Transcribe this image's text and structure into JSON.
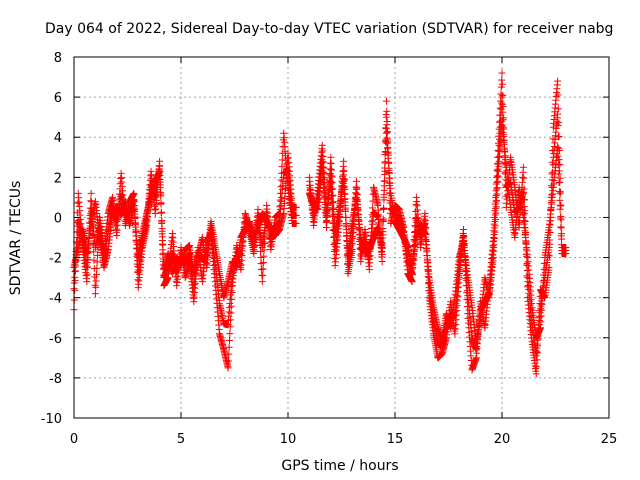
{
  "chart_data": {
    "type": "scatter",
    "title": "Day 064 of 2022, Sidereal Day-to-day VTEC variation (SDTVAR) for receiver nabg",
    "xlabel": "GPS time / hours",
    "ylabel": "SDTVAR / TECUs",
    "xlim": [
      0,
      25
    ],
    "ylim": [
      -10,
      8
    ],
    "xticks": [
      0,
      5,
      10,
      15,
      20,
      25
    ],
    "yticks": [
      -10,
      -8,
      -6,
      -4,
      -2,
      0,
      2,
      4,
      6,
      8
    ],
    "xtick_labels": [
      "0",
      "5",
      "10",
      "15",
      "20",
      "25"
    ],
    "ytick_labels": [
      "-10",
      "-8",
      "-6",
      "-4",
      "-2",
      "0",
      "2",
      "4",
      "6",
      "8"
    ],
    "grid": true,
    "marker": "+",
    "color": "#ff0000",
    "series": [
      {
        "name": "SDTVAR",
        "x": [
          0.0,
          0.2,
          0.4,
          0.6,
          0.8,
          1.0,
          1.2,
          1.4,
          1.6,
          1.8,
          2.0,
          2.2,
          2.4,
          2.6,
          2.8,
          3.0,
          3.2,
          3.4,
          3.6,
          3.8,
          4.0,
          4.2,
          4.4,
          4.6,
          4.8,
          5.0,
          5.2,
          5.4,
          5.6,
          5.8,
          6.0,
          6.2,
          6.4,
          6.6,
          6.8,
          7.0,
          7.2,
          7.4,
          7.6,
          7.8,
          8.0,
          8.2,
          8.4,
          8.6,
          8.8,
          9.0,
          9.2,
          9.4,
          9.6,
          9.8,
          10.0,
          10.2,
          11.0,
          11.2,
          11.4,
          11.6,
          11.8,
          12.0,
          12.2,
          12.4,
          12.6,
          12.8,
          13.0,
          13.2,
          13.4,
          13.6,
          13.8,
          14.0,
          14.2,
          14.4,
          14.6,
          14.8,
          15.0,
          15.2,
          15.4,
          15.6,
          15.8,
          16.0,
          16.2,
          16.4,
          16.6,
          16.8,
          17.0,
          17.2,
          17.4,
          17.6,
          17.8,
          18.0,
          18.2,
          18.4,
          18.6,
          18.8,
          19.0,
          19.2,
          19.4,
          19.6,
          19.8,
          20.0,
          20.2,
          20.4,
          20.6,
          20.8,
          21.0,
          21.2,
          21.4,
          21.6,
          21.8,
          22.0,
          22.2,
          22.4,
          22.6,
          22.8
        ],
        "y": [
          -2.5,
          -1.5,
          -0.6,
          -1.8,
          -0.3,
          0.8,
          -1.0,
          -2.5,
          -1.6,
          0.3,
          0.5,
          0.1,
          0.8,
          -0.4,
          0.6,
          -2.0,
          -0.8,
          0.2,
          1.0,
          1.8,
          2.3,
          -2.6,
          -1.8,
          -2.8,
          -2.0,
          -2.4,
          -1.6,
          -1.4,
          -2.8,
          -2.0,
          -1.0,
          -2.5,
          -0.2,
          -1.5,
          -2.8,
          -4.0,
          -3.2,
          -2.2,
          -2.5,
          -1.0,
          -0.6,
          -0.2,
          -1.2,
          -0.4,
          0.2,
          -0.2,
          -0.6,
          -0.9,
          -0.6,
          0.2,
          3.2,
          0.5,
          1.2,
          0.6,
          0.4,
          2.5,
          -0.5,
          3.0,
          -0.8,
          0.5,
          1.8,
          -1.8,
          -0.3,
          1.0,
          -1.0,
          -1.8,
          -1.6,
          -1.0,
          -0.5,
          -1.5,
          4.2,
          1.2,
          -0.2,
          -0.6,
          -1.0,
          -1.5,
          -2.4,
          -1.0,
          -0.3,
          -0.8,
          -3.0,
          -4.5,
          -5.5,
          -6.2,
          -4.8,
          -5.5,
          -4.0,
          -2.0,
          -1.2,
          -3.0,
          -4.5,
          -6.2,
          -5.0,
          -3.0,
          -4.0,
          -2.0,
          1.8,
          4.8,
          2.5,
          0.5,
          -1.0,
          1.5,
          0.0,
          -2.0,
          -4.5,
          -6.0,
          -5.5,
          -2.0,
          -0.5,
          1.5,
          3.5,
          -1.8
        ],
        "y_alt": [
          -4.6,
          1.2,
          -1.4,
          -3.2,
          1.2,
          -3.8,
          0.0,
          -1.8,
          0.2,
          1.0,
          -0.9,
          2.2,
          -0.4,
          0.8,
          1.2,
          -3.5,
          -1.5,
          -0.4,
          2.3,
          0.2,
          2.8,
          -3.4,
          -3.0,
          -0.8,
          -3.4,
          -1.5,
          -3.0,
          -2.2,
          -4.2,
          -1.5,
          -3.2,
          -1.2,
          -0.8,
          -3.2,
          -5.8,
          -6.6,
          -7.5,
          -3.4,
          -1.4,
          -2.6,
          0.2,
          -0.6,
          -1.8,
          0.4,
          -3.2,
          0.6,
          -1.6,
          0.0,
          0.2,
          4.2,
          1.5,
          -0.3,
          2.0,
          -0.4,
          1.5,
          3.6,
          0.2,
          1.8,
          -2.4,
          -0.2,
          2.8,
          -2.8,
          -1.6,
          1.8,
          -2.2,
          -0.6,
          -2.6,
          1.5,
          0.6,
          -2.2,
          5.8,
          -0.3,
          0.6,
          0.4,
          -0.5,
          -2.8,
          -3.2,
          1.0,
          -1.5,
          0.2,
          -4.0,
          -5.8,
          -7.0,
          -6.8,
          -6.0,
          -4.2,
          -5.8,
          -3.0,
          -0.6,
          -4.8,
          -7.6,
          -7.0,
          -4.2,
          -5.5,
          -3.5,
          -1.0,
          3.0,
          7.2,
          0.5,
          3.0,
          1.5,
          -0.5,
          2.5,
          -4.0,
          -6.2,
          -7.8,
          -3.6,
          -4.0,
          -2.5,
          4.5,
          6.8,
          -1.5
        ]
      }
    ]
  }
}
